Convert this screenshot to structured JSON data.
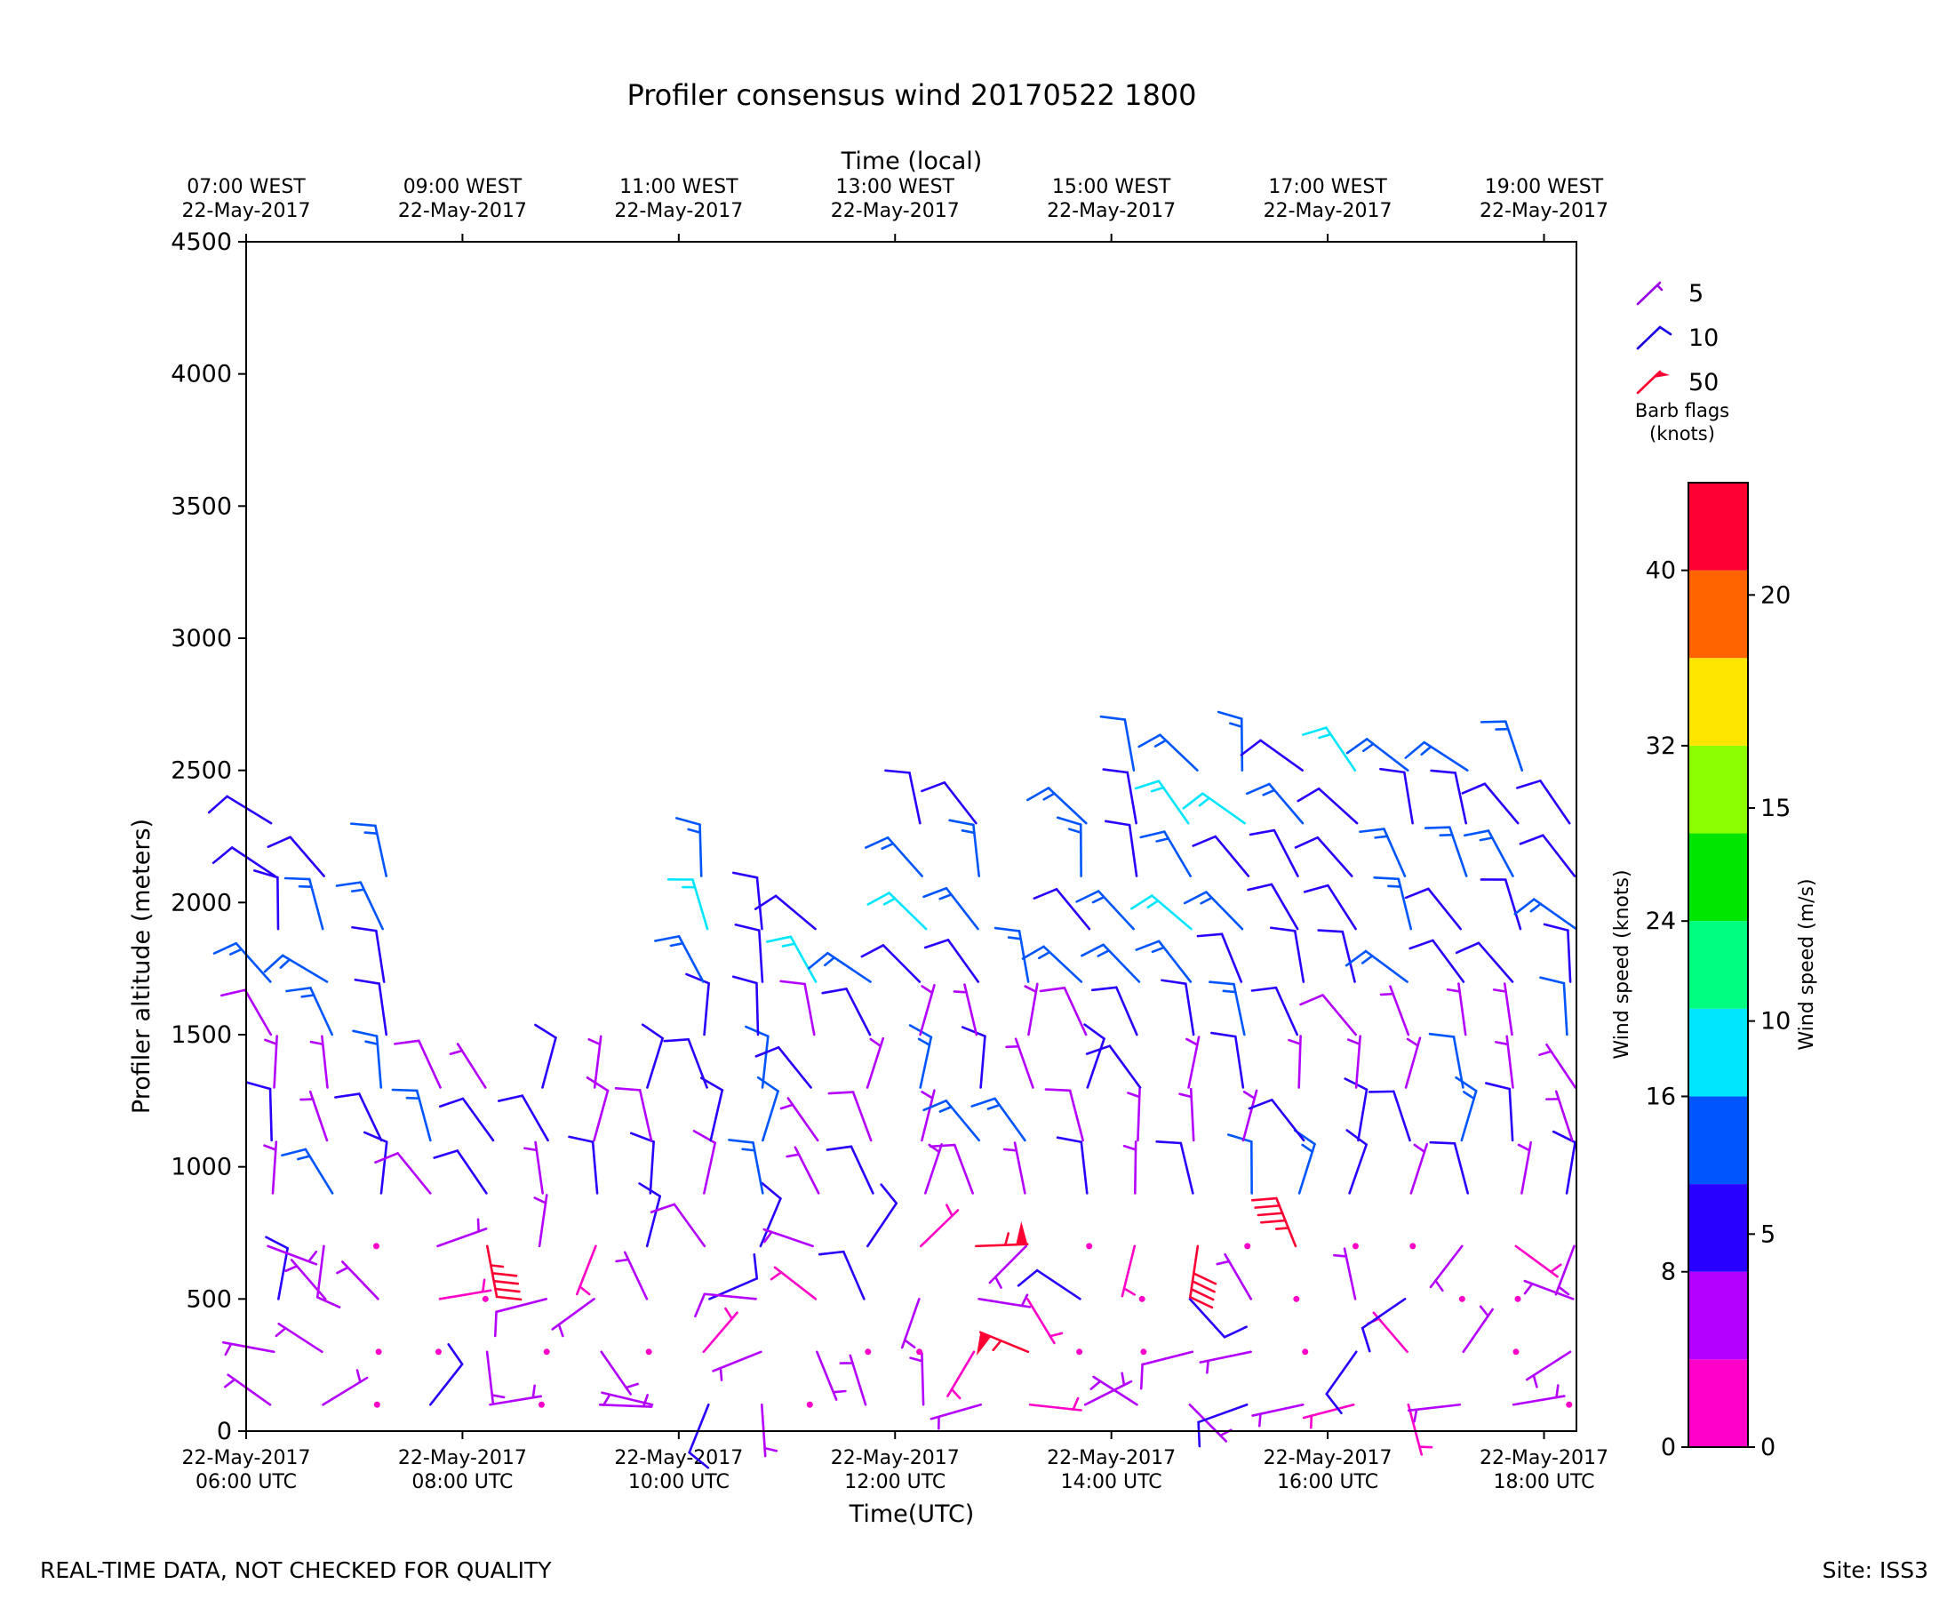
{
  "chart_data": {
    "type": "wind-barb",
    "title": "Profiler consensus wind 20170522 1800",
    "xlabel": "Time(UTC)",
    "xlabel_top": "Time (local)",
    "ylabel": "Profiler altitude (meters)",
    "xlim_hours_utc": [
      6.0,
      18.3
    ],
    "ylim": [
      0,
      4500
    ],
    "yticks": [
      0,
      500,
      1000,
      1500,
      2000,
      2500,
      3000,
      3500,
      4000,
      4500
    ],
    "xticks_utc": [
      {
        "hour": 6,
        "date": "22-May-2017",
        "time": "06:00 UTC"
      },
      {
        "hour": 8,
        "date": "22-May-2017",
        "time": "08:00 UTC"
      },
      {
        "hour": 10,
        "date": "22-May-2017",
        "time": "10:00 UTC"
      },
      {
        "hour": 12,
        "date": "22-May-2017",
        "time": "12:00 UTC"
      },
      {
        "hour": 14,
        "date": "22-May-2017",
        "time": "14:00 UTC"
      },
      {
        "hour": 16,
        "date": "22-May-2017",
        "time": "16:00 UTC"
      },
      {
        "hour": 18,
        "date": "22-May-2017",
        "time": "18:00 UTC"
      }
    ],
    "xticks_local": [
      {
        "hour": 6,
        "time": "07:00 WEST",
        "date": "22-May-2017"
      },
      {
        "hour": 8,
        "time": "09:00 WEST",
        "date": "22-May-2017"
      },
      {
        "hour": 10,
        "time": "11:00 WEST",
        "date": "22-May-2017"
      },
      {
        "hour": 12,
        "time": "13:00 WEST",
        "date": "22-May-2017"
      },
      {
        "hour": 14,
        "time": "15:00 WEST",
        "date": "22-May-2017"
      },
      {
        "hour": 16,
        "time": "17:00 WEST",
        "date": "22-May-2017"
      },
      {
        "hour": 18,
        "time": "19:00 WEST",
        "date": "22-May-2017"
      }
    ],
    "barb_legend": {
      "title_line1": "Barb flags",
      "title_line2": "(knots)",
      "entries": [
        {
          "label": "5",
          "speed_kt": 5,
          "color": "#9b00e6"
        },
        {
          "label": "10",
          "speed_kt": 10,
          "color": "#1a00e6"
        },
        {
          "label": "50",
          "speed_kt": 50,
          "color": "#ff0033"
        }
      ]
    },
    "colorbar": {
      "label_knots": "Wind speed (knots)",
      "label_ms": "Wind speed (m/s)",
      "knots_range": [
        0,
        44
      ],
      "bounds_knots": [
        0,
        4,
        8,
        12,
        16,
        20,
        24,
        28,
        32,
        36,
        40,
        44
      ],
      "colors": [
        "#ff00c8",
        "#b400ff",
        "#2800ff",
        "#0055ff",
        "#00e6ff",
        "#00ff80",
        "#00e600",
        "#8cff00",
        "#ffe600",
        "#ff6400",
        "#ff0033"
      ],
      "ticks_knots": [
        "0",
        "8",
        "16",
        "24",
        "32",
        "40"
      ],
      "ticks_ms": [
        "0",
        "5",
        "10",
        "15",
        "20"
      ]
    },
    "barb_grid": {
      "times_utc": [
        6.25,
        6.75,
        7.25,
        7.75,
        8.25,
        8.75,
        9.25,
        9.75,
        10.25,
        10.75,
        11.25,
        11.75,
        12.25,
        12.75,
        13.25,
        13.75,
        14.25,
        14.75,
        15.25,
        15.75,
        16.25,
        16.75,
        17.25,
        17.75,
        18.25
      ],
      "top_altitude_m": [
        2380,
        2290,
        2200,
        1300,
        1300,
        1300,
        1400,
        1400,
        2200,
        2050,
        2050,
        1700,
        2400,
        2300,
        1870,
        2400,
        2520,
        2520,
        2570,
        2570,
        2650,
        2570,
        2550,
        2620,
        2480
      ],
      "altitude_step_m": 200,
      "note": "Each column holds barbs from ~100 m up to the listed top altitude, plotted as wind barbs colored by speed."
    }
  },
  "footer": {
    "left": "REAL-TIME DATA, NOT CHECKED FOR QUALITY",
    "right": "Site: ISS3"
  }
}
